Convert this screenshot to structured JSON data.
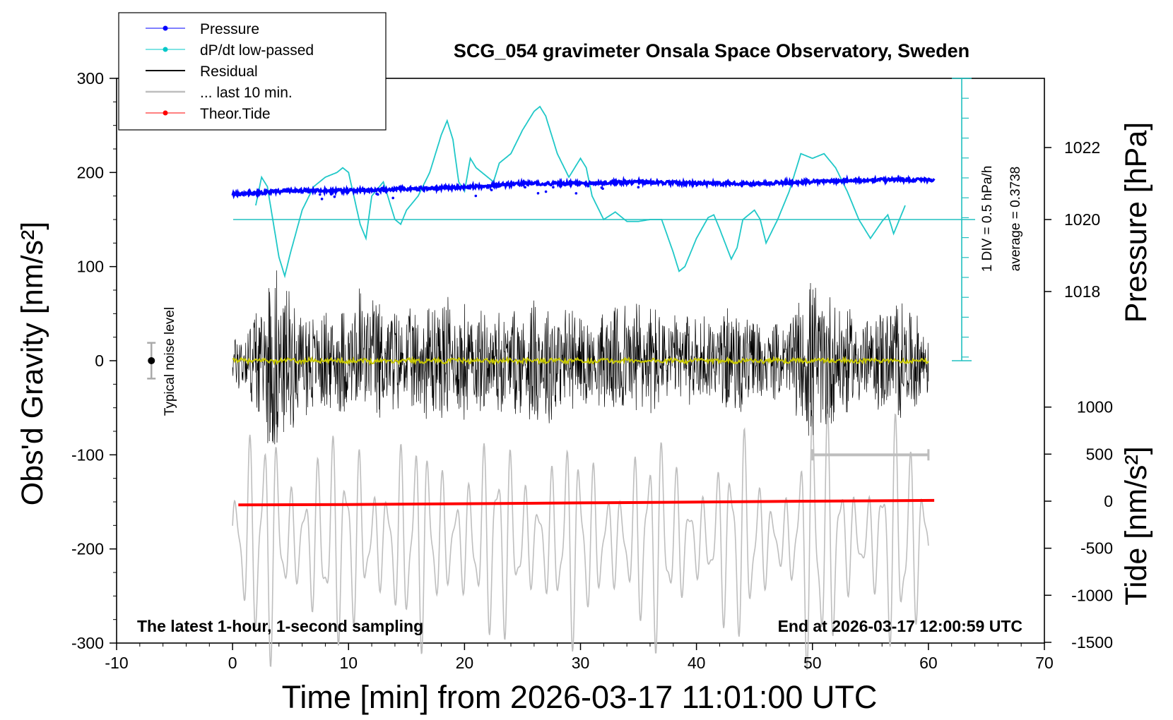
{
  "chart_data": {
    "type": "line",
    "title": "SCG_054 gravimeter Onsala Space Observatory, Sweden",
    "xlabel": "Time [min] from 2026-03-17 11:01:00 UTC",
    "ylabel_left": "Obs'd Gravity [nm/s²]",
    "ylabel_right_top": "Pressure [hPa]",
    "ylabel_right_bottom": "Tide [nm/s²]",
    "xlim": [
      -10,
      70
    ],
    "ylim_left": [
      -300,
      300
    ],
    "x_ticks": [
      "-10",
      "0",
      "10",
      "20",
      "30",
      "40",
      "50",
      "60",
      "70"
    ],
    "y_ticks_left": [
      "300",
      "200",
      "100",
      "0",
      "-100",
      "-200",
      "-300"
    ],
    "pressure_ticks": [
      "1022",
      "1020",
      "1018"
    ],
    "tide_ticks": [
      "1000",
      "500",
      "0",
      "-500",
      "-1000",
      "-1500"
    ],
    "legend": [
      {
        "name": "Pressure",
        "color": "#0000ff",
        "marker": true
      },
      {
        "name": "dP/dt low-passed",
        "color": "#00c8c8",
        "marker": true
      },
      {
        "name": "Residual",
        "color": "#000000",
        "marker": false
      },
      {
        "name": "... last 10 min.",
        "color": "#bebebe",
        "marker": false
      },
      {
        "name": "Theor.Tide",
        "color": "#ff0000",
        "marker": true
      }
    ],
    "annotations": {
      "noise_label": "Typical noise level",
      "div_label": "1 DIV = 0.5 hPa/h",
      "average_label": "average = 0.3738",
      "bottom_left": "The latest 1-hour, 1-second sampling",
      "bottom_right": "End at 2026-03-17 12:00:59 UTC"
    },
    "series": [
      {
        "name": "Pressure",
        "axis": "pressure_hPa",
        "x": [
          0,
          5,
          10,
          15,
          20,
          25,
          30,
          35,
          40,
          45,
          50,
          55,
          60.5
        ],
        "values": [
          1020.7,
          1020.8,
          1020.8,
          1020.85,
          1020.9,
          1021.0,
          1021.0,
          1021.05,
          1021.0,
          1021.0,
          1021.05,
          1021.1,
          1021.1
        ]
      },
      {
        "name": "dP/dt low-passed",
        "axis": "left_px_mapped",
        "x": [
          2,
          2.5,
          3,
          4,
          4.5,
          5,
          6,
          7,
          8,
          9,
          9.5,
          10,
          11,
          11.5,
          12,
          13,
          14,
          14.5,
          15,
          16,
          17,
          18,
          18.5,
          19,
          19.5,
          20,
          20.5,
          21,
          22,
          22.5,
          23,
          24,
          25,
          26,
          26.5,
          27,
          28,
          29,
          30,
          30.5,
          31,
          32,
          33,
          34,
          35,
          36,
          37,
          38,
          38.5,
          39,
          40,
          41,
          41.5,
          42,
          43,
          43.5,
          44,
          45,
          45.5,
          46,
          47,
          48,
          49,
          50,
          51,
          52,
          53,
          54,
          55,
          56,
          56.5,
          57,
          58
        ],
        "values": [
          165,
          195,
          185,
          110,
          90,
          115,
          160,
          185,
          195,
          200,
          205,
          200,
          145,
          130,
          175,
          190,
          150,
          145,
          160,
          175,
          200,
          240,
          255,
          235,
          190,
          180,
          215,
          205,
          195,
          190,
          210,
          220,
          245,
          265,
          270,
          260,
          220,
          195,
          215,
          205,
          175,
          150,
          158,
          148,
          148,
          150,
          150,
          115,
          95,
          100,
          130,
          152,
          155,
          140,
          108,
          120,
          150,
          160,
          150,
          125,
          150,
          180,
          220,
          215,
          220,
          205,
          180,
          150,
          130,
          148,
          155,
          135,
          165
        ]
      },
      {
        "name": "Theor.Tide",
        "axis": "tide_nm_s2",
        "x": [
          0.5,
          10,
          20,
          30,
          40,
          50,
          60.5
        ],
        "values": [
          -40,
          -35,
          -27,
          -18,
          -10,
          0,
          8
        ]
      }
    ]
  }
}
